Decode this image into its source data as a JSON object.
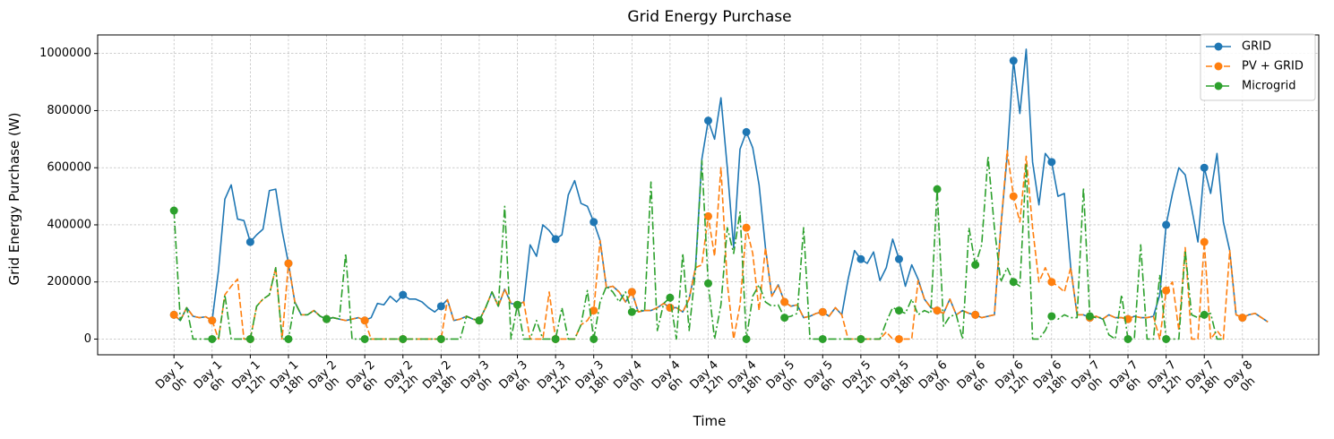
{
  "chart_data": {
    "type": "line",
    "title": "Grid Energy Purchase",
    "xlabel": "Time",
    "ylabel": "Grid Energy Purchase (W)",
    "xlim": [
      -12,
      180
    ],
    "ylim": [
      -55000,
      1065000
    ],
    "yticks": [
      0,
      200000,
      400000,
      600000,
      800000,
      1000000
    ],
    "ytick_labels": [
      "0",
      "200000",
      "400000",
      "600000",
      "800000",
      "1000000"
    ],
    "xticks": [
      0,
      6,
      12,
      18,
      24,
      30,
      36,
      42,
      48,
      54,
      60,
      66,
      72,
      78,
      84,
      90,
      96,
      102,
      108,
      114,
      120,
      126,
      132,
      138,
      144,
      150,
      156,
      162,
      168
    ],
    "xtick_labels": [
      [
        "Day 1",
        "0h"
      ],
      [
        "Day 1",
        "6h"
      ],
      [
        "Day 1",
        "12h"
      ],
      [
        "Day 1",
        "18h"
      ],
      [
        "Day 2",
        "0h"
      ],
      [
        "Day 2",
        "6h"
      ],
      [
        "Day 2",
        "12h"
      ],
      [
        "Day 2",
        "18h"
      ],
      [
        "Day 3",
        "0h"
      ],
      [
        "Day 3",
        "6h"
      ],
      [
        "Day 3",
        "12h"
      ],
      [
        "Day 3",
        "18h"
      ],
      [
        "Day 4",
        "0h"
      ],
      [
        "Day 4",
        "6h"
      ],
      [
        "Day 4",
        "12h"
      ],
      [
        "Day 4",
        "18h"
      ],
      [
        "Day 5",
        "0h"
      ],
      [
        "Day 5",
        "6h"
      ],
      [
        "Day 5",
        "12h"
      ],
      [
        "Day 5",
        "18h"
      ],
      [
        "Day 6",
        "0h"
      ],
      [
        "Day 6",
        "6h"
      ],
      [
        "Day 6",
        "12h"
      ],
      [
        "Day 6",
        "18h"
      ],
      [
        "Day 7",
        "0h"
      ],
      [
        "Day 7",
        "6h"
      ],
      [
        "Day 7",
        "12h"
      ],
      [
        "Day 7",
        "18h"
      ],
      [
        "Day 8",
        "0h"
      ]
    ],
    "grid": true,
    "legend_position": "top-right",
    "marker_every": 6,
    "series": [
      {
        "name": "GRID",
        "color": "#1f77b4",
        "linestyle": "solid",
        "values": [
          85000,
          65000,
          110000,
          80000,
          75000,
          78000,
          65000,
          240000,
          490000,
          540000,
          420000,
          415000,
          340000,
          365000,
          385000,
          520000,
          525000,
          380000,
          265000,
          130000,
          85000,
          85000,
          100000,
          80000,
          70000,
          75000,
          70000,
          65000,
          70000,
          75000,
          65000,
          75000,
          125000,
          120000,
          150000,
          130000,
          155000,
          140000,
          140000,
          130000,
          110000,
          95000,
          115000,
          138000,
          65000,
          70000,
          80000,
          70000,
          65000,
          110000,
          165000,
          115000,
          175000,
          125000,
          120000,
          130000,
          330000,
          290000,
          400000,
          380000,
          350000,
          365000,
          505000,
          555000,
          475000,
          465000,
          410000,
          345000,
          180000,
          185000,
          165000,
          130000,
          165000,
          95000,
          100000,
          100000,
          110000,
          125000,
          110000,
          110000,
          95000,
          140000,
          250000,
          630000,
          765000,
          700000,
          845000,
          600000,
          320000,
          665000,
          725000,
          670000,
          540000,
          320000,
          150000,
          190000,
          130000,
          115000,
          120000,
          75000,
          80000,
          90000,
          95000,
          80000,
          110000,
          85000,
          210000,
          310000,
          280000,
          265000,
          305000,
          205000,
          250000,
          350000,
          280000,
          185000,
          260000,
          210000,
          140000,
          110000,
          100000,
          90000,
          140000,
          85000,
          100000,
          90000,
          85000,
          75000,
          80000,
          85000,
          390000,
          640000,
          975000,
          790000,
          1015000,
          620000,
          470000,
          650000,
          620000,
          500000,
          510000,
          250000,
          85000,
          85000,
          75000,
          80000,
          70000,
          85000,
          75000,
          75000,
          70000,
          80000,
          75000,
          75000,
          80000,
          155000,
          400000,
          510000,
          600000,
          575000,
          460000,
          340000,
          600000,
          510000,
          650000,
          410000,
          310000,
          85000,
          75000,
          85000,
          90000,
          75000,
          60000
        ]
      },
      {
        "name": "PV + GRID",
        "color": "#ff7f0e",
        "linestyle": "dashed",
        "values": [
          85000,
          65000,
          110000,
          80000,
          75000,
          78000,
          65000,
          0,
          155000,
          185000,
          210000,
          0,
          0,
          115000,
          140000,
          155000,
          250000,
          0,
          265000,
          130000,
          85000,
          85000,
          100000,
          80000,
          70000,
          75000,
          70000,
          65000,
          70000,
          75000,
          65000,
          0,
          0,
          0,
          0,
          0,
          0,
          0,
          0,
          0,
          0,
          0,
          0,
          138000,
          65000,
          70000,
          80000,
          70000,
          65000,
          110000,
          165000,
          115000,
          175000,
          125000,
          120000,
          130000,
          0,
          0,
          0,
          165000,
          0,
          0,
          0,
          0,
          50000,
          65000,
          100000,
          345000,
          180000,
          185000,
          165000,
          130000,
          165000,
          95000,
          100000,
          100000,
          110000,
          125000,
          110000,
          110000,
          95000,
          140000,
          250000,
          260000,
          430000,
          290000,
          600000,
          195000,
          0,
          120000,
          390000,
          300000,
          100000,
          320000,
          150000,
          190000,
          130000,
          115000,
          120000,
          75000,
          80000,
          90000,
          95000,
          80000,
          110000,
          85000,
          0,
          0,
          0,
          0,
          0,
          0,
          25000,
          0,
          0,
          0,
          0,
          205000,
          140000,
          110000,
          100000,
          90000,
          140000,
          85000,
          100000,
          90000,
          85000,
          75000,
          80000,
          85000,
          390000,
          660000,
          500000,
          410000,
          640000,
          390000,
          200000,
          250000,
          200000,
          185000,
          165000,
          250000,
          85000,
          85000,
          75000,
          80000,
          70000,
          85000,
          75000,
          75000,
          70000,
          80000,
          75000,
          75000,
          80000,
          0,
          170000,
          200000,
          30000,
          320000,
          0,
          0,
          340000,
          0,
          30000,
          0,
          310000,
          85000,
          75000,
          85000,
          90000,
          75000,
          60000
        ]
      },
      {
        "name": "Microgrid",
        "color": "#2ca02c",
        "linestyle": "dashdot",
        "values": [
          450000,
          65000,
          110000,
          0,
          0,
          0,
          0,
          0,
          155000,
          0,
          0,
          0,
          0,
          115000,
          140000,
          155000,
          250000,
          0,
          0,
          130000,
          85000,
          85000,
          100000,
          80000,
          70000,
          75000,
          70000,
          300000,
          0,
          0,
          0,
          0,
          0,
          0,
          0,
          0,
          0,
          0,
          0,
          0,
          0,
          0,
          0,
          0,
          0,
          0,
          80000,
          70000,
          65000,
          110000,
          165000,
          115000,
          465000,
          0,
          120000,
          0,
          0,
          65000,
          0,
          0,
          0,
          110000,
          0,
          0,
          50000,
          170000,
          0,
          130000,
          185000,
          165000,
          130000,
          165000,
          95000,
          100000,
          100000,
          550000,
          30000,
          125000,
          145000,
          0,
          300000,
          30000,
          240000,
          625000,
          195000,
          0,
          120000,
          390000,
          300000,
          445000,
          0,
          150000,
          190000,
          130000,
          115000,
          120000,
          75000,
          80000,
          90000,
          390000,
          0,
          0,
          0,
          0,
          0,
          0,
          0,
          0,
          0,
          0,
          0,
          0,
          60000,
          110000,
          100000,
          90000,
          140000,
          85000,
          100000,
          90000,
          525000,
          45000,
          80000,
          85000,
          0,
          390000,
          260000,
          330000,
          640000,
          390000,
          200000,
          250000,
          200000,
          185000,
          615000,
          0,
          0,
          30000,
          80000,
          70000,
          85000,
          75000,
          75000,
          530000,
          80000,
          75000,
          75000,
          15000,
          0,
          155000,
          0,
          0,
          330000,
          0,
          0,
          225000,
          0,
          0,
          0,
          310000,
          85000,
          75000,
          85000,
          90000,
          0,
          0
        ]
      }
    ]
  }
}
